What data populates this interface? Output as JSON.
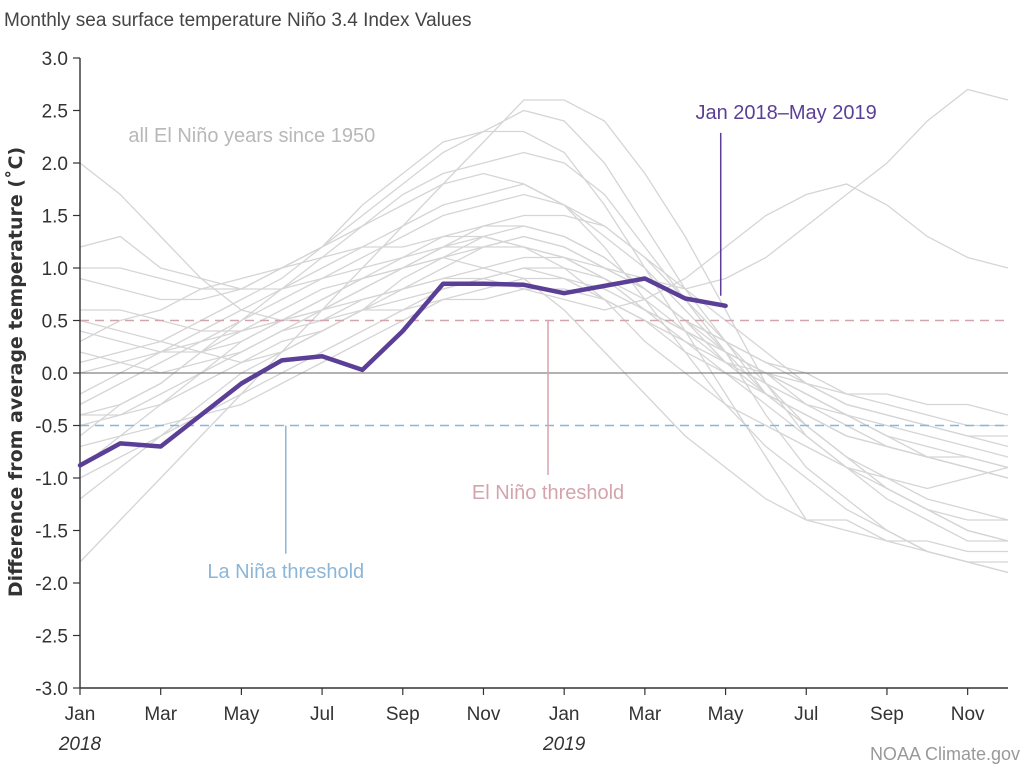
{
  "chart_data": {
    "type": "line",
    "title": "Monthly sea surface temperature Niño 3.4 Index Values",
    "ylabel": "Difference from average temperature (˚C)",
    "xlabel": "",
    "ylim": [
      -3.0,
      3.0
    ],
    "yticks": [
      "3.0",
      "2.5",
      "2.0",
      "1.5",
      "1.0",
      "0.5",
      "0.0",
      "-0.5",
      "-1.0",
      "-1.5",
      "-2.0",
      "-2.5",
      "-3.0"
    ],
    "ytick_values": [
      3.0,
      2.5,
      2.0,
      1.5,
      1.0,
      0.5,
      0.0,
      -0.5,
      -1.0,
      -1.5,
      -2.0,
      -2.5,
      -3.0
    ],
    "x_range": [
      0,
      23
    ],
    "xticks": [
      {
        "label": "Jan",
        "index": 0
      },
      {
        "label": "Mar",
        "index": 2
      },
      {
        "label": "May",
        "index": 4
      },
      {
        "label": "Jul",
        "index": 6
      },
      {
        "label": "Sep",
        "index": 8
      },
      {
        "label": "Nov",
        "index": 10
      },
      {
        "label": "Jan",
        "index": 12
      },
      {
        "label": "Mar",
        "index": 14
      },
      {
        "label": "May",
        "index": 16
      },
      {
        "label": "Jul",
        "index": 18
      },
      {
        "label": "Sep",
        "index": 20
      },
      {
        "label": "Nov",
        "index": 22
      }
    ],
    "year_labels": [
      {
        "label": "2018",
        "index": 0
      },
      {
        "label": "2019",
        "index": 12
      }
    ],
    "thresholds": [
      {
        "name": "El Niño threshold",
        "value": 0.5,
        "color": "#d4a4ad",
        "label_index": 11.6,
        "label_value": -1.2
      },
      {
        "name": "La Niña threshold",
        "value": -0.5,
        "color": "#8cb6d8",
        "label_index": 5.1,
        "label_value": -1.95
      }
    ],
    "highlight_series": {
      "name": "Jan 2018–May 2019",
      "color": "#5b3f97",
      "values": [
        -0.88,
        -0.67,
        -0.7,
        -0.4,
        -0.1,
        0.12,
        0.16,
        0.03,
        0.4,
        0.85,
        0.85,
        0.84,
        0.76,
        0.83,
        0.9,
        0.71,
        0.64
      ],
      "label_index": 17.5,
      "label_value": 2.42
    },
    "background_label": "all El Niño years since 1950",
    "background_color": "#d5d5d5",
    "background_series": [
      [
        -0.4,
        -0.3,
        -0.1,
        0.2,
        0.5,
        0.8,
        1.1,
        1.4,
        1.7,
        1.9,
        2.0,
        2.1,
        2.0,
        1.7,
        1.2,
        0.7,
        0.2,
        -0.4,
        -0.9,
        -1.2,
        -1.5,
        -1.7,
        -1.8,
        -1.9
      ],
      [
        -1.8,
        -1.4,
        -1.0,
        -0.6,
        -0.2,
        0.2,
        0.6,
        1.0,
        1.4,
        1.8,
        2.2,
        2.6,
        2.6,
        2.4,
        1.9,
        1.3,
        0.6,
        -0.1,
        -0.6,
        -0.9,
        -1.2,
        -1.4,
        -1.6,
        -1.6
      ],
      [
        1.2,
        1.3,
        1.0,
        0.9,
        0.8,
        1.0,
        1.2,
        1.5,
        1.8,
        2.1,
        2.3,
        2.5,
        2.4,
        2.0,
        1.4,
        0.8,
        0.3,
        -0.2,
        -0.5,
        -0.8,
        -1.1,
        -1.3,
        -1.4,
        -1.4
      ],
      [
        2.0,
        1.7,
        1.3,
        0.9,
        0.6,
        0.5,
        0.6,
        0.8,
        1.0,
        1.2,
        1.3,
        1.2,
        1.0,
        0.7,
        0.3,
        0.0,
        -0.3,
        -0.5,
        -0.7,
        -0.9,
        -1.0,
        -1.1,
        -1.0,
        -0.9
      ],
      [
        -0.9,
        -0.6,
        -0.3,
        0.0,
        0.3,
        0.5,
        0.7,
        0.9,
        1.0,
        1.1,
        1.2,
        1.3,
        1.2,
        1.0,
        0.8,
        0.5,
        0.2,
        0.0,
        -0.3,
        -0.5,
        -0.7,
        -0.8,
        -0.9,
        -1.0
      ],
      [
        0.6,
        0.6,
        0.5,
        0.4,
        0.4,
        0.6,
        0.8,
        0.9,
        1.0,
        1.1,
        1.0,
        0.9,
        0.6,
        0.2,
        -0.2,
        -0.6,
        -0.9,
        -1.2,
        -1.4,
        -1.5,
        -1.6,
        -1.6,
        -1.7,
        -1.7
      ],
      [
        -0.2,
        0.0,
        0.2,
        0.4,
        0.6,
        0.8,
        1.0,
        1.2,
        1.4,
        1.6,
        1.7,
        1.8,
        1.6,
        1.2,
        0.7,
        0.2,
        -0.3,
        -0.7,
        -1.0,
        -1.3,
        -1.5,
        -1.7,
        -1.8,
        -1.9
      ],
      [
        0.2,
        0.1,
        0.0,
        0.1,
        0.2,
        0.4,
        0.5,
        0.7,
        0.8,
        0.9,
        1.0,
        1.1,
        1.1,
        1.0,
        0.9,
        0.8,
        0.9,
        1.1,
        1.4,
        1.7,
        2.0,
        2.4,
        2.7,
        2.6
      ],
      [
        -0.6,
        -0.3,
        -0.1,
        0.2,
        0.4,
        0.5,
        0.6,
        0.7,
        0.8,
        0.9,
        0.9,
        0.8,
        0.7,
        0.6,
        0.7,
        0.9,
        1.2,
        1.5,
        1.7,
        1.8,
        1.6,
        1.3,
        1.1,
        1.0
      ],
      [
        0.4,
        0.3,
        0.2,
        0.2,
        0.3,
        0.5,
        0.7,
        0.9,
        1.1,
        1.3,
        1.4,
        1.4,
        1.3,
        1.1,
        0.8,
        0.5,
        0.3,
        0.1,
        0.0,
        -0.2,
        -0.3,
        -0.4,
        -0.5,
        -0.5
      ],
      [
        -1.2,
        -0.9,
        -0.6,
        -0.3,
        0.0,
        0.2,
        0.4,
        0.6,
        0.9,
        1.1,
        1.3,
        1.4,
        1.3,
        1.1,
        0.8,
        0.5,
        0.1,
        -0.2,
        -0.4,
        -0.6,
        -0.7,
        -0.8,
        -0.9,
        -1.0
      ],
      [
        0.9,
        0.8,
        0.7,
        0.7,
        0.8,
        1.0,
        1.2,
        1.4,
        1.6,
        1.8,
        1.9,
        1.8,
        1.6,
        1.3,
        1.0,
        0.6,
        0.2,
        -0.2,
        -0.5,
        -0.8,
        -1.0,
        -1.2,
        -1.3,
        -1.4
      ],
      [
        -0.4,
        -0.4,
        -0.3,
        -0.1,
        0.1,
        0.3,
        0.4,
        0.6,
        0.7,
        0.8,
        0.9,
        1.0,
        1.0,
        0.9,
        0.7,
        0.4,
        0.1,
        -0.1,
        -0.3,
        -0.4,
        -0.5,
        -0.6,
        -0.7,
        -0.8
      ],
      [
        0.1,
        0.2,
        0.3,
        0.5,
        0.7,
        0.9,
        1.2,
        1.6,
        1.9,
        2.2,
        2.3,
        2.3,
        2.1,
        1.6,
        1.0,
        0.4,
        -0.2,
        -0.8,
        -1.4,
        -1.4,
        -1.6,
        -1.7,
        -1.8,
        -1.8
      ],
      [
        0.5,
        0.4,
        0.3,
        0.2,
        0.1,
        0.2,
        0.4,
        0.6,
        0.8,
        1.0,
        1.2,
        1.3,
        1.2,
        1.0,
        0.8,
        0.5,
        0.3,
        0.1,
        -0.1,
        -0.3,
        -0.4,
        -0.5,
        -0.6,
        -0.7
      ],
      [
        -0.7,
        -0.6,
        -0.5,
        -0.4,
        -0.2,
        0.0,
        0.2,
        0.4,
        0.6,
        0.8,
        0.9,
        1.0,
        0.9,
        0.7,
        0.5,
        0.2,
        0.0,
        -0.2,
        -0.4,
        -0.6,
        -0.7,
        -0.8,
        -0.8,
        -0.9
      ],
      [
        0.3,
        0.5,
        0.6,
        0.8,
        0.9,
        1.0,
        1.1,
        1.2,
        1.2,
        1.3,
        1.3,
        1.2,
        1.1,
        0.9,
        0.6,
        0.4,
        0.2,
        0.0,
        -0.2,
        -0.4,
        -0.6,
        -0.7,
        -0.8,
        -0.9
      ],
      [
        -0.3,
        -0.1,
        0.1,
        0.3,
        0.4,
        0.5,
        0.5,
        0.6,
        0.6,
        0.7,
        0.7,
        0.8,
        0.8,
        0.7,
        0.5,
        0.3,
        0.1,
        0.0,
        -0.1,
        -0.2,
        -0.2,
        -0.3,
        -0.3,
        -0.4
      ],
      [
        1.0,
        1.0,
        0.9,
        0.8,
        0.8,
        0.8,
        0.9,
        1.0,
        1.1,
        1.2,
        1.2,
        1.2,
        1.1,
        0.9,
        0.6,
        0.3,
        0.0,
        -0.3,
        -0.6,
        -0.9,
        -1.1,
        -1.3,
        -1.5,
        -1.6
      ],
      [
        -1.0,
        -0.8,
        -0.6,
        -0.4,
        -0.3,
        -0.1,
        0.1,
        0.3,
        0.5,
        0.7,
        0.8,
        0.9,
        0.9,
        0.8,
        0.6,
        0.4,
        0.2,
        0.0,
        -0.2,
        -0.4,
        -0.6,
        -0.8,
        -0.9,
        -1.0
      ],
      [
        0.0,
        0.1,
        0.2,
        0.3,
        0.5,
        0.7,
        0.9,
        1.1,
        1.3,
        1.5,
        1.6,
        1.7,
        1.6,
        1.4,
        1.1,
        0.7,
        0.3,
        -0.1,
        -0.5,
        -0.8,
        -1.1,
        -1.3,
        -1.5,
        -1.6
      ],
      [
        -0.5,
        -0.4,
        -0.2,
        0.0,
        0.2,
        0.4,
        0.6,
        0.8,
        1.0,
        1.2,
        1.4,
        1.5,
        1.5,
        1.4,
        1.1,
        0.8,
        0.5,
        0.2,
        -0.1,
        -0.3,
        -0.4,
        -0.5,
        -0.6,
        -0.6
      ]
    ]
  },
  "credit": "NOAA Climate.gov"
}
